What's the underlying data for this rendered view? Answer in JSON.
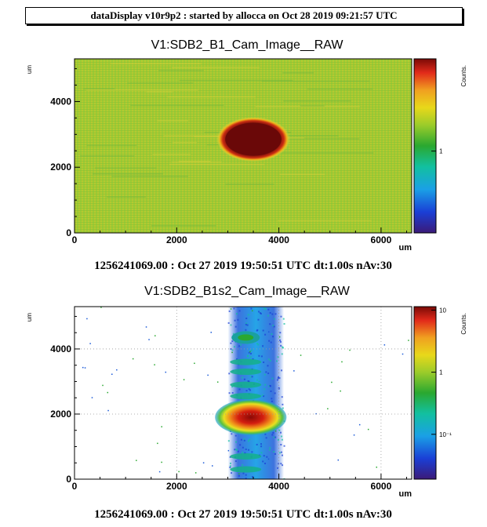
{
  "banner": "dataDisplay v10r9p2 : started by allocca on Oct 28 2019 09:21:57 UTC",
  "chart_data": [
    {
      "type": "heatmap",
      "title": "V1:SDB2_B1_Cam_Image__RAW",
      "xlabel": "um",
      "ylabel": "um",
      "xlim": [
        0,
        6600
      ],
      "ylim": [
        0,
        5300
      ],
      "xticks": [
        0,
        2000,
        4000,
        6000
      ],
      "yticks": [
        0,
        2000,
        4000
      ],
      "colorbar": {
        "label": "Counts.",
        "scale": "log",
        "ticks": [
          "1"
        ]
      },
      "features": [
        {
          "kind": "uniform background",
          "level": "green-yellow"
        },
        {
          "kind": "saturated spot",
          "center": [
            3500,
            2850
          ],
          "radius_x": 550,
          "radius_y": 500
        }
      ],
      "footer": "1256241069.00 : Oct 27 2019 19:50:51 UTC dt:1.00s nAv:30"
    },
    {
      "type": "heatmap",
      "title": "V1:SDB2_B1s2_Cam_Image__RAW",
      "xlabel": "um",
      "ylabel": "um",
      "xlim": [
        0,
        6600
      ],
      "ylim": [
        0,
        5300
      ],
      "xticks": [
        0,
        2000,
        4000,
        6000
      ],
      "yticks": [
        0,
        2000,
        4000
      ],
      "grid": true,
      "colorbar": {
        "label": "Counts.",
        "scale": "log",
        "ticks": [
          "10",
          "1",
          "10⁻¹"
        ]
      },
      "features": [
        {
          "kind": "vertical band",
          "x_range": [
            3000,
            4100
          ]
        },
        {
          "kind": "main spot",
          "center": [
            3450,
            1900
          ],
          "radius_x": 700,
          "radius_y": 550
        },
        {
          "kind": "secondary spot",
          "center": [
            3350,
            4350
          ]
        },
        {
          "kind": "fringes",
          "y_values": [
            3600,
            3300,
            2900,
            2550,
            700,
            300
          ]
        }
      ],
      "footer": "1256241069.00 : Oct 27 2019 19:50:51 UTC dt:1.00s nAv:30"
    }
  ]
}
